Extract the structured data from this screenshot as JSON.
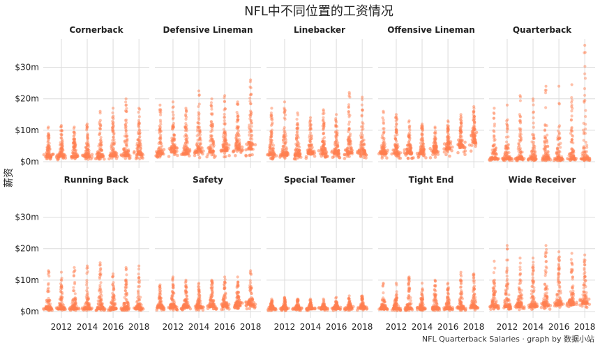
{
  "chart_data": {
    "type": "scatter",
    "title": "NFL中不同位置的工资情况",
    "ylabel": "薪资",
    "xlabel": "",
    "caption": "NFL Quarterback Salaries · graph by 数据小站",
    "point_color": "#ff7f50",
    "grid": true,
    "legend": "none",
    "x_ticks": [
      2012,
      2014,
      2016,
      2018
    ],
    "x_range": [
      2010.6,
      2018.8
    ],
    "y_ticks": [
      {
        "value": 0,
        "label": "$0m"
      },
      {
        "value": 10,
        "label": "$10m"
      },
      {
        "value": 20,
        "label": "$20m"
      },
      {
        "value": 30,
        "label": "$30m"
      }
    ],
    "y_range": [
      -2,
      39
    ],
    "years": [
      2011,
      2012,
      2013,
      2014,
      2015,
      2016,
      2017,
      2018
    ],
    "facets": [
      {
        "name": "Cornerback",
        "max": [
          11,
          11.5,
          11,
          12,
          16,
          17,
          20,
          17
        ],
        "median": [
          1.5,
          1.5,
          1.5,
          1.5,
          1.5,
          1.8,
          2,
          2.2
        ]
      },
      {
        "name": "Defensive Lineman",
        "max": [
          18,
          19,
          17,
          22.5,
          20,
          21,
          19,
          26
        ],
        "median": [
          2.5,
          3,
          2.5,
          3,
          3,
          3.5,
          4,
          4
        ]
      },
      {
        "name": "Linebacker",
        "max": [
          17,
          19,
          15.5,
          14,
          16.5,
          15,
          22,
          20.5
        ],
        "median": [
          2,
          2,
          2,
          2.5,
          2.5,
          2.5,
          2.5,
          2.5
        ]
      },
      {
        "name": "Offensive Lineman",
        "max": [
          16,
          15,
          13,
          12,
          11,
          13,
          15,
          17.5
        ],
        "median": [
          2.5,
          2.5,
          2.5,
          2.5,
          3,
          4,
          4.5,
          6
        ]
      },
      {
        "name": "Quarterback",
        "max": [
          17,
          18,
          21,
          20,
          24,
          24,
          24.5,
          37
        ],
        "median": [
          0.8,
          0.8,
          0.8,
          0.8,
          0.8,
          0.8,
          0.8,
          0.8
        ]
      },
      {
        "name": "Running Back",
        "max": [
          13,
          12.5,
          14,
          14.5,
          15.5,
          12,
          14,
          14.5
        ],
        "median": [
          0.8,
          0.8,
          0.8,
          0.8,
          0.8,
          0.8,
          0.8,
          0.8
        ]
      },
      {
        "name": "Safety",
        "max": [
          8.5,
          11,
          10,
          9,
          10,
          11,
          11,
          13
        ],
        "median": [
          1.2,
          1.2,
          1.2,
          1.2,
          1.5,
          1.5,
          1.8,
          2
        ]
      },
      {
        "name": "Special Teamer",
        "max": [
          4,
          4.5,
          4,
          4,
          4,
          4.5,
          5,
          5
        ],
        "median": [
          0.8,
          0.8,
          0.8,
          0.8,
          0.8,
          0.9,
          1,
          1
        ]
      },
      {
        "name": "Tight End",
        "max": [
          9,
          9,
          11,
          9,
          10,
          9,
          12.5,
          12
        ],
        "median": [
          0.8,
          0.8,
          0.8,
          0.8,
          0.8,
          0.8,
          1,
          1.2
        ]
      },
      {
        "name": "Wide Receiver",
        "max": [
          16,
          21,
          17,
          17,
          21,
          19,
          18.5,
          18
        ],
        "median": [
          1.5,
          1.5,
          1.5,
          1.5,
          1.8,
          2,
          2.2,
          2.5
        ]
      }
    ]
  }
}
